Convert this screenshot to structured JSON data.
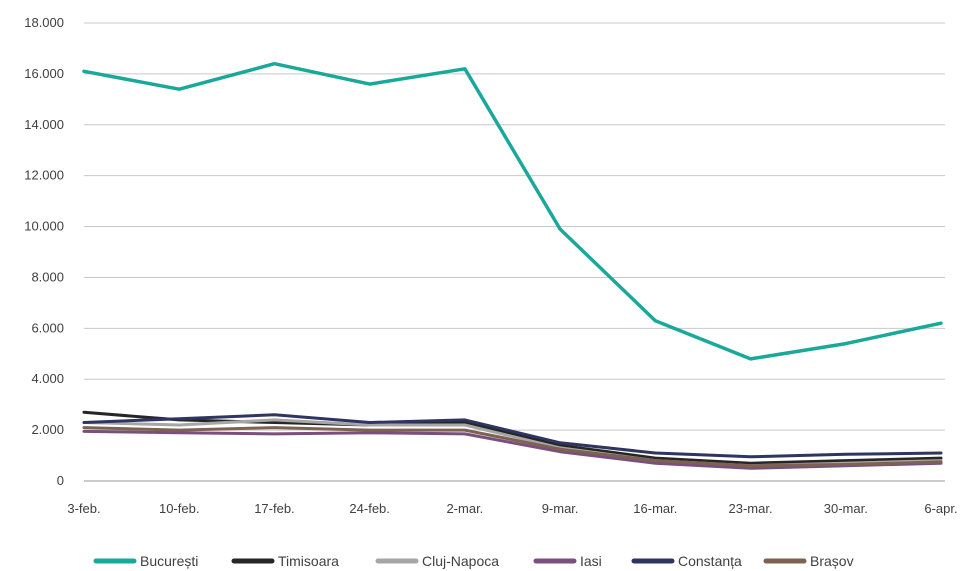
{
  "chart_data": {
    "type": "line",
    "title": "",
    "xlabel": "",
    "ylabel": "",
    "categories": [
      "3-feb.",
      "10-feb.",
      "17-feb.",
      "24-feb.",
      "2-mar.",
      "9-mar.",
      "16-mar.",
      "23-mar.",
      "30-mar.",
      "6-apr."
    ],
    "y_ticks": [
      0,
      2000,
      4000,
      6000,
      8000,
      10000,
      12000,
      14000,
      16000,
      18000
    ],
    "y_tick_labels": [
      "0",
      "2.000",
      "4.000",
      "6.000",
      "8.000",
      "10.000",
      "12.000",
      "14.000",
      "16.000",
      "18.000"
    ],
    "ylim": [
      0,
      18000
    ],
    "grid": true,
    "legend_position": "bottom",
    "series": [
      {
        "name": "București",
        "color": "#1aa89a",
        "values": [
          16100,
          15400,
          16400,
          15600,
          16200,
          9900,
          6300,
          4800,
          5400,
          6200
        ]
      },
      {
        "name": "Timisoara",
        "color": "#262626",
        "values": [
          2700,
          2400,
          2300,
          2200,
          2300,
          1400,
          900,
          700,
          800,
          900
        ]
      },
      {
        "name": "Cluj-Napoca",
        "color": "#a6a6a6",
        "values": [
          2300,
          2200,
          2400,
          2200,
          2200,
          1300,
          800,
          600,
          700,
          800
        ]
      },
      {
        "name": "Iasi",
        "color": "#7a4f7e",
        "values": [
          1950,
          1900,
          1850,
          1900,
          1850,
          1150,
          700,
          500,
          600,
          700
        ]
      },
      {
        "name": "Constanța",
        "color": "#2e3560",
        "values": [
          2300,
          2450,
          2600,
          2300,
          2400,
          1500,
          1100,
          950,
          1050,
          1100
        ]
      },
      {
        "name": "Brașov",
        "color": "#7d6251",
        "values": [
          2100,
          2000,
          2100,
          2000,
          2000,
          1250,
          800,
          600,
          650,
          750
        ]
      }
    ]
  }
}
